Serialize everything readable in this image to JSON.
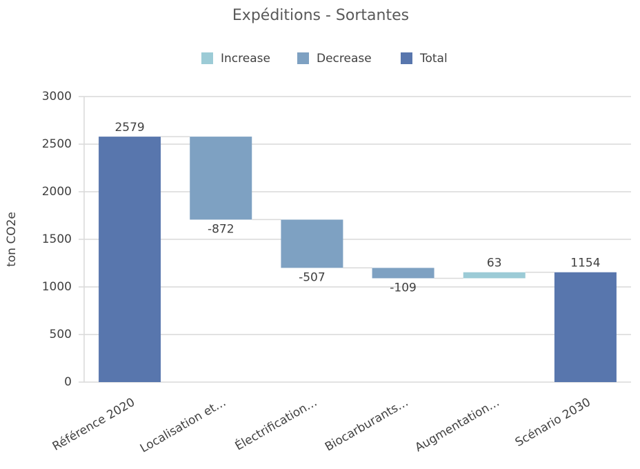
{
  "chart_data": {
    "type": "waterfall",
    "title": "Expéditions - Sortantes",
    "y_label": "ton CO2e",
    "legend": [
      {
        "name": "Increase",
        "color": "#9ccbd6"
      },
      {
        "name": "Decrease",
        "color": "#7ea1c2"
      },
      {
        "name": "Total",
        "color": "#5876ad"
      }
    ],
    "categories": [
      "Référence 2020",
      "Localisation et…",
      "Électrification…",
      "Biocarburants…",
      "Augmentation…",
      "Scénario 2030"
    ],
    "values": [
      2579,
      -872,
      -507,
      -109,
      63,
      1154
    ],
    "kind": [
      2,
      1,
      1,
      1,
      0,
      2
    ],
    "ylim": [
      0,
      3000
    ],
    "yticks": [
      0,
      500,
      1000,
      1500,
      2000,
      2500,
      3000
    ],
    "grid": true
  }
}
